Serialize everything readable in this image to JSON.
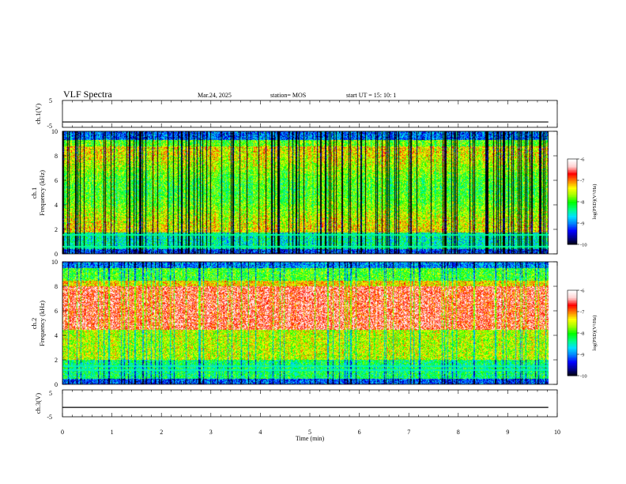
{
  "header": {
    "title": "VLF Spectra",
    "date": "Mar.24, 2025",
    "station": "station= MOS",
    "start_ut": "start  UT =   15: 10: 1"
  },
  "chart_data": [
    {
      "type": "line",
      "id": "ch1-voltage",
      "ylabel": "ch.1(V)",
      "ylim": [
        -5,
        5
      ],
      "yticks": [
        5,
        -5
      ],
      "x": [
        0,
        9.82
      ],
      "y": [
        -3,
        -3
      ]
    },
    {
      "type": "heatmap",
      "id": "ch1-spectrogram",
      "ylabel": "ch.1",
      "ylabel2": "Frequency (kHz)",
      "xlim": [
        0,
        10
      ],
      "ylim": [
        0,
        10
      ],
      "yticks": [
        0,
        2,
        4,
        6,
        8,
        10
      ],
      "data_extent_min": 9.82,
      "colorbar": {
        "label": "log(PSD)(V²/Hz)",
        "range": [
          -10,
          -6
        ],
        "ticks": [
          -6,
          -7,
          -8,
          -9,
          -10
        ]
      }
    },
    {
      "type": "heatmap",
      "id": "ch2-spectrogram",
      "ylabel": "ch.2",
      "ylabel2": "Frequency (kHz)",
      "xlim": [
        0,
        10
      ],
      "ylim": [
        0,
        10
      ],
      "yticks": [
        0,
        2,
        4,
        6,
        8,
        10
      ],
      "data_extent_min": 9.82,
      "colorbar": {
        "label": "log(PSD)(V²/Hz)",
        "range": [
          -10,
          -6
        ],
        "ticks": [
          -6,
          -7,
          -8,
          -9,
          -10
        ]
      }
    },
    {
      "type": "line",
      "id": "ch3-voltage",
      "ylabel": "ch.3(V)",
      "ylim": [
        -5,
        5
      ],
      "yticks": [
        5,
        -5
      ],
      "x": [
        0,
        9.82
      ],
      "y": [
        -1.5,
        -1.5
      ]
    }
  ],
  "xaxis": {
    "label": "Time (min)",
    "ticks": [
      0,
      1,
      2,
      3,
      4,
      5,
      6,
      7,
      8,
      9,
      10
    ]
  },
  "colors": {
    "spectrum": [
      "#000000",
      "#00008b",
      "#0000ff",
      "#0080ff",
      "#00e0ff",
      "#00ff80",
      "#00ff00",
      "#a0ff00",
      "#ffff00",
      "#ff8000",
      "#ff0000",
      "#ffd0d0",
      "#ffffff"
    ]
  }
}
